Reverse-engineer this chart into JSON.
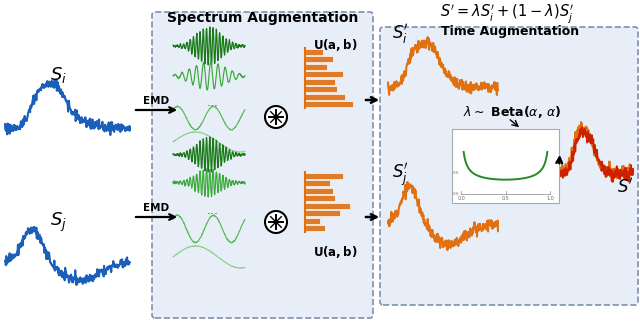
{
  "spectrum_aug_title": "Spectrum Augmentation",
  "time_aug_title": "Time Augmentation",
  "formula": "$S^{\\prime} = \\lambda S^{\\prime}_i + (1-\\lambda)S^{\\prime}_j$",
  "lambda_text": "$\\lambda \\sim$ Beta($\\alpha$, $\\alpha$)",
  "emd_text": "EMD",
  "si_label": "$\\boldsymbol{S_i}$",
  "sj_label": "$\\boldsymbol{S_j}$",
  "si_prime_label": "$\\boldsymbol{S^{\\prime}_i}$",
  "sj_prime_label": "$\\boldsymbol{S^{\\prime}_j}$",
  "sprime_label": "$\\boldsymbol{S^{\\prime}}$",
  "ub_label": "$\\mathbf{U(a,b)}$",
  "bg_color": "#e8eef8",
  "orange_color": "#E07010",
  "blue_color": "#1a5fba",
  "green_dark": "#1a7a1a",
  "green_med": "#3aaa3a",
  "green_light": "#5aba5a"
}
